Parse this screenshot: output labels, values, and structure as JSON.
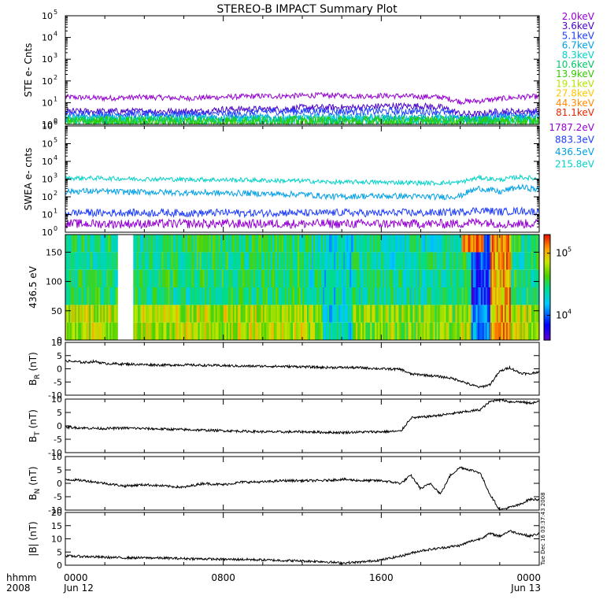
{
  "chart_data": {
    "type": "line",
    "title": "STEREO-B IMPACT Summary Plot",
    "x_axis": {
      "hhmm_label": "hhmm",
      "year_label": "2008",
      "ticks": [
        {
          "time": "0000",
          "date": "Jun 12",
          "hour": 0
        },
        {
          "time": "0800",
          "date": "",
          "hour": 8
        },
        {
          "time": "1600",
          "date": "",
          "hour": 16
        },
        {
          "time": "0000",
          "date": "Jun 13",
          "hour": 24
        }
      ],
      "range_hours": [
        0,
        24
      ]
    },
    "timestamp_text": "Tue Dec 16 03:37:43 2008",
    "panels": [
      {
        "id": "ste",
        "ylabel": "STE e- Cnts",
        "scale": "log",
        "ylim_exp": [
          0,
          5
        ],
        "tick_exps": [
          0,
          1,
          2,
          3,
          4,
          5
        ],
        "legend": [
          {
            "label": "2.0keV",
            "color": "#9400d3"
          },
          {
            "label": "3.6keV",
            "color": "#4b00c8"
          },
          {
            "label": "5.1keV",
            "color": "#1e3cff"
          },
          {
            "label": "6.7keV",
            "color": "#00a0e6"
          },
          {
            "label": "8.3keV",
            "color": "#00d2c8"
          },
          {
            "label": "10.6keV",
            "color": "#00c864"
          },
          {
            "label": "13.9keV",
            "color": "#32cd00"
          },
          {
            "label": "19.1keV",
            "color": "#b4e600"
          },
          {
            "label": "27.8keV",
            "color": "#ffc800"
          },
          {
            "label": "44.3keV",
            "color": "#ff8c00"
          },
          {
            "label": "81.1keV",
            "color": "#e62800"
          }
        ],
        "series": [
          {
            "label": "2.0keV",
            "color": "#9400d3",
            "x": [
              0,
              1,
              2,
              3,
              4,
              5,
              6,
              7,
              8,
              9,
              10,
              11,
              12,
              13,
              14,
              15,
              16,
              17,
              18,
              19,
              20,
              21,
              22,
              23,
              24
            ],
            "y": [
              18,
              17,
              16,
              17,
              18,
              17,
              16,
              17,
              18,
              19,
              20,
              20,
              21,
              22,
              21,
              20,
              21,
              20,
              19,
              18,
              11,
              12,
              15,
              18,
              19
            ]
          },
          {
            "label": "3.6keV",
            "color": "#4b00c8",
            "x": [
              0,
              1,
              2,
              3,
              4,
              5,
              6,
              7,
              8,
              9,
              10,
              11,
              12,
              13,
              14,
              15,
              16,
              17,
              18,
              19,
              20,
              21,
              22,
              23,
              24
            ],
            "y": [
              4,
              4,
              4,
              4,
              4,
              4,
              4,
              4,
              5,
              5,
              5,
              5,
              6,
              6,
              6,
              6,
              7,
              7,
              7,
              6,
              3,
              3,
              4,
              4,
              4
            ]
          },
          {
            "label": "5.1keV",
            "color": "#1e3cff",
            "x": [
              0,
              1,
              2,
              3,
              4,
              5,
              6,
              7,
              8,
              9,
              10,
              11,
              12,
              13,
              14,
              15,
              16,
              17,
              18,
              19,
              20,
              21,
              22,
              23,
              24
            ],
            "y": [
              3,
              3,
              3,
              3,
              3,
              3,
              3,
              3,
              3,
              3,
              4,
              4,
              4,
              4,
              4,
              4,
              4,
              4,
              4,
              4,
              2,
              2,
              3,
              3,
              3
            ]
          },
          {
            "label": "6.7keV",
            "color": "#00a0e6",
            "x": [
              0,
              1,
              2,
              3,
              4,
              5,
              6,
              7,
              8,
              9,
              10,
              11,
              12,
              13,
              14,
              15,
              16,
              17,
              18,
              19,
              20,
              21,
              22,
              23,
              24
            ],
            "y": [
              2,
              2,
              2,
              2,
              2,
              2,
              2,
              2,
              2,
              2,
              2,
              2,
              2,
              2,
              2,
              2,
              2,
              2,
              2,
              2,
              1.6,
              1.6,
              2,
              2,
              2
            ]
          },
          {
            "label": "8.3keV",
            "color": "#00d2c8",
            "x": [
              0,
              24
            ],
            "y": [
              1.6,
              1.6
            ]
          },
          {
            "label": "10.6keV",
            "color": "#00c864",
            "x": [
              0,
              24
            ],
            "y": [
              1.4,
              1.4
            ]
          },
          {
            "label": "13.9keV",
            "color": "#32cd00",
            "x": [
              0,
              24
            ],
            "y": [
              1.3,
              1.3
            ]
          }
        ]
      },
      {
        "id": "swea",
        "ylabel": "SWEA e- cnts",
        "scale": "log",
        "ylim_exp": [
          0,
          6
        ],
        "tick_exps": [
          0,
          1,
          2,
          3,
          4,
          5,
          6
        ],
        "legend": [
          {
            "label": "1787.2eV",
            "color": "#9400d3"
          },
          {
            "label": "883.3eV",
            "color": "#1e3cff"
          },
          {
            "label": "436.5eV",
            "color": "#00a0e6"
          },
          {
            "label": "215.8eV",
            "color": "#00d2c8"
          }
        ],
        "series": [
          {
            "label": "215.8eV",
            "color": "#00d2c8",
            "x": [
              0,
              1,
              2,
              3,
              4,
              5,
              6,
              7,
              8,
              9,
              10,
              11,
              12,
              13,
              14,
              15,
              16,
              17,
              18,
              19,
              20,
              21,
              22,
              23,
              24
            ],
            "y": [
              1100,
              1150,
              1100,
              1050,
              1000,
              1000,
              950,
              950,
              900,
              900,
              850,
              800,
              800,
              700,
              650,
              700,
              650,
              650,
              600,
              600,
              650,
              1200,
              900,
              1300,
              1000
            ]
          },
          {
            "label": "436.5eV",
            "color": "#00a0e6",
            "x": [
              0,
              1,
              2,
              3,
              4,
              5,
              6,
              7,
              8,
              9,
              10,
              11,
              12,
              13,
              14,
              15,
              16,
              17,
              18,
              19,
              20,
              21,
              22,
              23,
              24
            ],
            "y": [
              200,
              210,
              200,
              190,
              185,
              180,
              170,
              170,
              160,
              160,
              150,
              140,
              140,
              110,
              100,
              110,
              110,
              110,
              100,
              100,
              110,
              300,
              180,
              350,
              250
            ]
          },
          {
            "label": "883.3eV",
            "color": "#1e3cff",
            "x": [
              0,
              1,
              2,
              3,
              4,
              5,
              6,
              7,
              8,
              9,
              10,
              11,
              12,
              13,
              14,
              15,
              16,
              17,
              18,
              19,
              20,
              21,
              22,
              23,
              24
            ],
            "y": [
              12,
              13,
              12,
              13,
              12,
              13,
              12,
              12,
              13,
              12,
              12,
              13,
              12,
              12,
              13,
              12,
              12,
              13,
              12,
              13,
              14,
              18,
              14,
              16,
              14
            ]
          },
          {
            "label": "1787.2eV",
            "color": "#9400d3",
            "x": [
              0,
              1,
              2,
              3,
              4,
              5,
              6,
              7,
              8,
              9,
              10,
              11,
              12,
              13,
              14,
              15,
              16,
              17,
              18,
              19,
              20,
              21,
              22,
              23,
              24
            ],
            "y": [
              3,
              3,
              3,
              3,
              3,
              3,
              3,
              3,
              3,
              3,
              3,
              3,
              3,
              3,
              3,
              3,
              3,
              3,
              3,
              3,
              3,
              4,
              3,
              3,
              3
            ]
          }
        ]
      },
      {
        "id": "pad",
        "ylabel": "436.5 eV",
        "type": "heatmap",
        "ylim": [
          0,
          180
        ],
        "yticks": [
          0,
          50,
          100,
          150
        ],
        "colorbar": {
          "ticks": [
            "10^5",
            "10^4"
          ],
          "range_exp": [
            3.6,
            5.3
          ]
        },
        "pitch_angle_bands": [
          15,
          45,
          75,
          105,
          135,
          165
        ]
      },
      {
        "id": "br",
        "ylabel_main": "B",
        "ylabel_sub": "R",
        "ylabel_unit": " (nT)",
        "ylim": [
          -10,
          10
        ],
        "yticks": [
          -10,
          -5,
          0,
          5,
          10
        ],
        "x": [
          0,
          0.5,
          1,
          1.5,
          2,
          3,
          4,
          5,
          6,
          7,
          8,
          9,
          10,
          11,
          12,
          13,
          14,
          15,
          16,
          17,
          17.5,
          18,
          19,
          19.5,
          20,
          20.5,
          21,
          21.5,
          22,
          22.5,
          23,
          23.5,
          24
        ],
        "y": [
          3,
          2.7,
          2.4,
          2.8,
          2,
          1.8,
          1.6,
          1.4,
          1.5,
          1.3,
          1.2,
          1,
          1,
          0.9,
          0.8,
          0.5,
          0.5,
          0.4,
          0,
          -0.2,
          -2,
          -2.2,
          -3,
          -3.5,
          -4.5,
          -6,
          -7,
          -6,
          -1,
          0.5,
          -1.5,
          -2,
          -1
        ]
      },
      {
        "id": "bt",
        "ylabel_main": "B",
        "ylabel_sub": "T",
        "ylabel_unit": " (nT)",
        "ylim": [
          -10,
          10
        ],
        "yticks": [
          -10,
          -5,
          0,
          5,
          10
        ],
        "x": [
          0,
          1,
          2,
          3,
          4,
          5,
          6,
          7,
          8,
          9,
          10,
          11,
          12,
          13,
          14,
          15,
          16,
          17,
          17.5,
          18,
          19,
          20,
          21,
          21.5,
          22,
          22.5,
          23,
          23.5,
          24
        ],
        "y": [
          -0.5,
          -0.8,
          -1,
          -0.8,
          -1,
          -1.2,
          -1.4,
          -1.6,
          -1.8,
          -2,
          -2.2,
          -2.3,
          -2.2,
          -2.4,
          -2.5,
          -2.3,
          -2.2,
          -2,
          3,
          3.2,
          4,
          5,
          6,
          9,
          10,
          9,
          9,
          8.5,
          9
        ]
      },
      {
        "id": "bn",
        "ylabel_main": "B",
        "ylabel_sub": "N",
        "ylabel_unit": " (nT)",
        "ylim": [
          -10,
          10
        ],
        "yticks": [
          -10,
          -5,
          0,
          5,
          10
        ],
        "x": [
          0,
          1,
          2,
          3,
          4,
          5,
          6,
          7,
          8,
          9,
          10,
          11,
          12,
          13,
          14,
          15,
          16,
          17,
          17.5,
          18,
          18.5,
          19,
          19.5,
          20,
          20.5,
          21,
          21.5,
          22,
          22.5,
          23,
          23.5,
          24
        ],
        "y": [
          1.5,
          1,
          0,
          -1,
          -0.5,
          -1,
          -1.5,
          0,
          -0.5,
          0.5,
          0.5,
          1,
          1,
          1,
          1.5,
          1,
          1,
          0,
          3,
          -2,
          0,
          -4,
          3,
          6,
          5,
          4,
          -4,
          -10,
          -9,
          -8,
          -6,
          -6
        ]
      },
      {
        "id": "bmag",
        "ylabel_main": "|B| (nT)",
        "ylim": [
          0,
          20
        ],
        "yticks": [
          0,
          5,
          10,
          15,
          20
        ],
        "x": [
          0,
          1,
          2,
          3,
          4,
          5,
          6,
          7,
          8,
          9,
          10,
          11,
          12,
          13,
          14,
          15,
          16,
          17,
          18,
          19,
          20,
          20.5,
          21,
          21.5,
          22,
          22.5,
          23,
          23.5,
          24
        ],
        "y": [
          3.5,
          3.3,
          3,
          2.8,
          2.8,
          2.7,
          2.5,
          2.4,
          2.2,
          2.2,
          2.0,
          1.8,
          1.6,
          1.4,
          0.8,
          1.2,
          2,
          3.5,
          5.5,
          6.5,
          7.5,
          9,
          10,
          12,
          11,
          13,
          12,
          11,
          12
        ]
      }
    ]
  }
}
